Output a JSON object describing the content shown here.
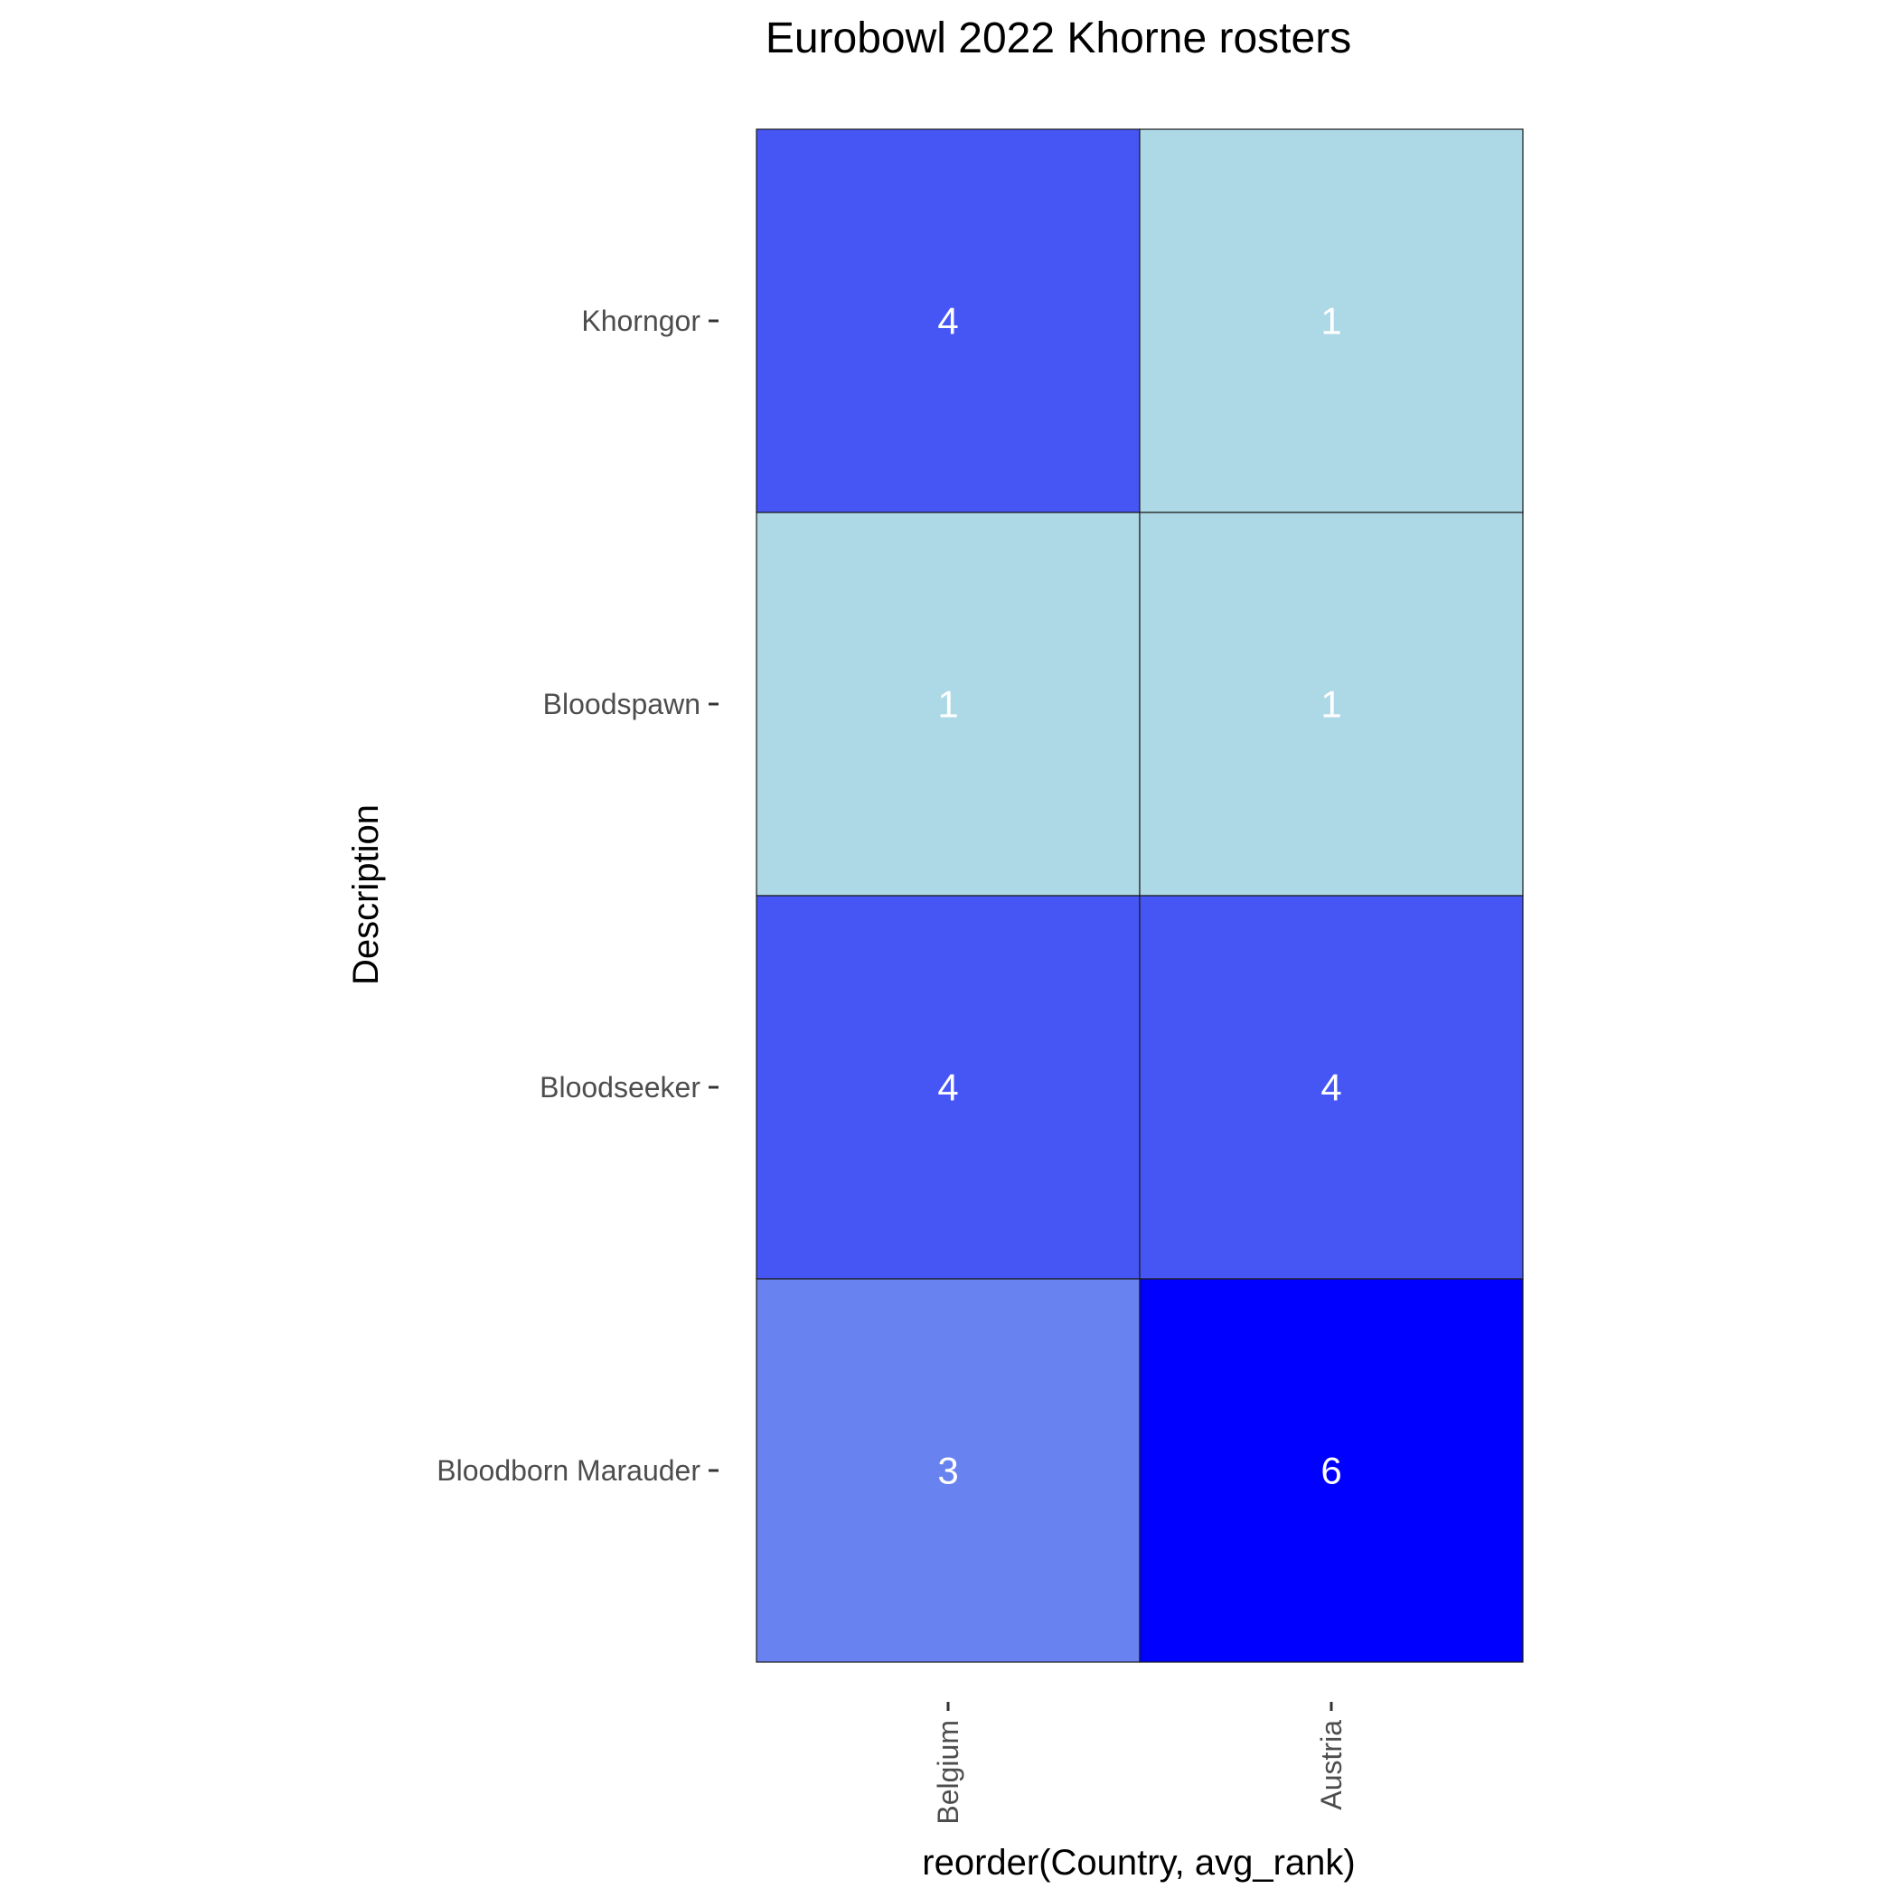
{
  "chart_data": {
    "type": "heatmap",
    "title": "Eurobowl 2022 Khorne rosters",
    "xlabel": "reorder(Country, avg_rank)",
    "ylabel": "Description",
    "x_categories": [
      "Belgium",
      "Austria"
    ],
    "y_categories": [
      "Khorngor",
      "Bloodspawn",
      "Bloodseeker",
      "Bloodborn Marauder"
    ],
    "cells": [
      {
        "x": "Belgium",
        "y": "Khorngor",
        "value": 4
      },
      {
        "x": "Austria",
        "y": "Khorngor",
        "value": 1
      },
      {
        "x": "Belgium",
        "y": "Bloodspawn",
        "value": 1
      },
      {
        "x": "Austria",
        "y": "Bloodspawn",
        "value": 1
      },
      {
        "x": "Belgium",
        "y": "Bloodseeker",
        "value": 4
      },
      {
        "x": "Austria",
        "y": "Bloodseeker",
        "value": 4
      },
      {
        "x": "Belgium",
        "y": "Bloodborn Marauder",
        "value": 3
      },
      {
        "x": "Austria",
        "y": "Bloodborn Marauder",
        "value": 6
      }
    ],
    "color_low": "#add8e6",
    "color_high": "#0000ff",
    "legend": "none",
    "grid": false
  }
}
